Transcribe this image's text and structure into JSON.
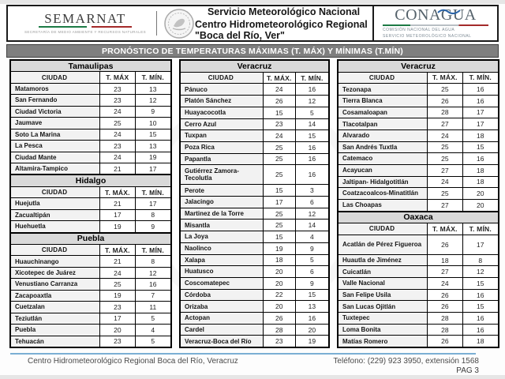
{
  "header": {
    "semarnat": {
      "wordmark": "SEMARNAT",
      "caption": "Secretaría de Medio Ambiente y Recursos Naturales"
    },
    "center_line1": "Servicio Meteorológico Nacional",
    "center_line2": "Centro Hidrometeorológico Regional \"Boca del Río, Ver\"",
    "conagua": {
      "wordmark": "CONAGUA",
      "caption_line1": "Comisión Nacional del Agua",
      "caption_line2": "Servicio Meteorológico Nacional"
    }
  },
  "title": "PRONÓSTICO DE TEMPERATURAS MÁXIMAS (T. MÁX) Y MÍNIMAS (T.MÍN)",
  "columns": [
    {
      "tables": [
        {
          "state": "Tamaulipas",
          "col_headers": [
            "CIUDAD",
            "T. MÁX",
            "T. MÍN."
          ],
          "rows": [
            [
              "Matamoros",
              "23",
              "13"
            ],
            [
              "San Fernando",
              "23",
              "12"
            ],
            [
              "Ciudad Victoria",
              "24",
              "9"
            ],
            [
              "Jaumave",
              "25",
              "10"
            ],
            [
              "Soto La Marina",
              "24",
              "15"
            ],
            [
              "La Pesca",
              "23",
              "13"
            ],
            [
              "Ciudad Mante",
              "24",
              "19"
            ],
            [
              "Altamira-Tampico",
              "21",
              "17"
            ]
          ]
        },
        {
          "state": "Hidalgo",
          "col_headers": [
            "CIUDAD",
            "T. MÁX.",
            "T. MÍN."
          ],
          "rows": [
            [
              "Huejutla",
              "21",
              "17"
            ],
            [
              "Zacualtipán",
              "17",
              "8"
            ],
            [
              "Huehuetla",
              "19",
              "9"
            ]
          ]
        },
        {
          "state": "Puebla",
          "col_headers": [
            "CIUDAD",
            "T. MÁX.",
            "T. MÍN."
          ],
          "rows": [
            [
              "Huauchinango",
              "21",
              "8"
            ],
            [
              "Xicotepec de Juárez",
              "24",
              "12"
            ],
            [
              "Venustiano Carranza",
              "25",
              "16"
            ],
            [
              "Zacapoaxtla",
              "19",
              "7"
            ],
            [
              "Cuetzalan",
              "23",
              "11"
            ],
            [
              "Teziutlán",
              "17",
              "5"
            ],
            [
              "Puebla",
              "20",
              "4"
            ],
            [
              "Tehuacán",
              "23",
              "5"
            ]
          ]
        }
      ]
    },
    {
      "tables": [
        {
          "state": "Veracruz",
          "col_headers": [
            "CIUDAD",
            "T. MÁX.",
            "T. MÍN."
          ],
          "rows": [
            [
              "Pánuco",
              "24",
              "16"
            ],
            [
              "Platón Sánchez",
              "26",
              "12"
            ],
            [
              "Huayacocotla",
              "15",
              "5"
            ],
            [
              "Cerro Azul",
              "23",
              "14"
            ],
            [
              "Tuxpan",
              "24",
              "15"
            ],
            [
              "Poza Rica",
              "25",
              "16"
            ],
            [
              "Papantla",
              "25",
              "16"
            ],
            [
              "Gutiérrez Zamora-Tecolutla",
              "25",
              "16"
            ],
            [
              "Perote",
              "15",
              "3"
            ],
            [
              "Jalacingo",
              "17",
              "6"
            ],
            [
              "Martinez de la Torre",
              "25",
              "12"
            ],
            [
              "Misantla",
              "25",
              "14"
            ],
            [
              "La Joya",
              "15",
              "4"
            ],
            [
              "Naolinco",
              "19",
              "9"
            ],
            [
              "Xalapa",
              "18",
              "5"
            ],
            [
              "Huatusco",
              "20",
              "6"
            ],
            [
              "Coscomatepec",
              "20",
              "9"
            ],
            [
              "Córdoba",
              "22",
              "15"
            ],
            [
              "Orizaba",
              "20",
              "13"
            ],
            [
              "Actopan",
              "26",
              "16"
            ],
            [
              "Cardel",
              "28",
              "20"
            ],
            [
              "Veracruz-Boca del Río",
              "23",
              "19"
            ]
          ]
        }
      ]
    },
    {
      "tables": [
        {
          "state": "Veracruz",
          "col_headers": [
            "CIUDAD",
            "T. MÁX.",
            "T. MÍN."
          ],
          "rows": [
            [
              "Tezonapa",
              "25",
              "16"
            ],
            [
              "Tierra Blanca",
              "26",
              "16"
            ],
            [
              "Cosamaloapan",
              "28",
              "17"
            ],
            [
              "Tlacotalpan",
              "27",
              "17"
            ],
            [
              "Alvarado",
              "24",
              "18"
            ],
            [
              "San Andrés Tuxtla",
              "25",
              "15"
            ],
            [
              "Catemaco",
              "25",
              "16"
            ],
            [
              "Acayucan",
              "27",
              "18"
            ],
            [
              "Jaltipan- Hidalgotitlán",
              "24",
              "18"
            ],
            [
              "Coatzacoalcos-Minatitlán",
              "25",
              "20"
            ],
            [
              "Las Choapas",
              "27",
              "20"
            ]
          ]
        },
        {
          "state": "Oaxaca",
          "col_headers": [
            "CIUDAD",
            "T. MÁX.",
            "T. MÍN."
          ],
          "rows": [
            [
              "Acatlán de Pérez Figueroa",
              "26",
              "17"
            ],
            [
              "Huautla de Jiménez",
              "18",
              "8"
            ],
            [
              "Cuicatlán",
              "27",
              "12"
            ],
            [
              "Valle Nacional",
              "24",
              "15"
            ],
            [
              "San Felipe Usila",
              "26",
              "16"
            ],
            [
              "San Lucas Ojitlán",
              "26",
              "15"
            ],
            [
              "Tuxtepec",
              "28",
              "16"
            ],
            [
              "Loma Bonita",
              "28",
              "16"
            ],
            [
              "Matías Romero",
              "26",
              "18"
            ]
          ]
        }
      ]
    }
  ],
  "footer": {
    "org": "Centro Hidrometeorológico Regional Boca del Río, Veracruz",
    "phone": "Teléfono: (229) 923 3950, extensión 1568",
    "page": "PAG 3"
  },
  "colors": {
    "title_bar": "#7f7f7f",
    "state_header": "#d9d9d9",
    "col_header": "#a6a6a6",
    "blue_line": "#7bafd4",
    "green": "#1d7a45",
    "red": "#a42a2a"
  }
}
